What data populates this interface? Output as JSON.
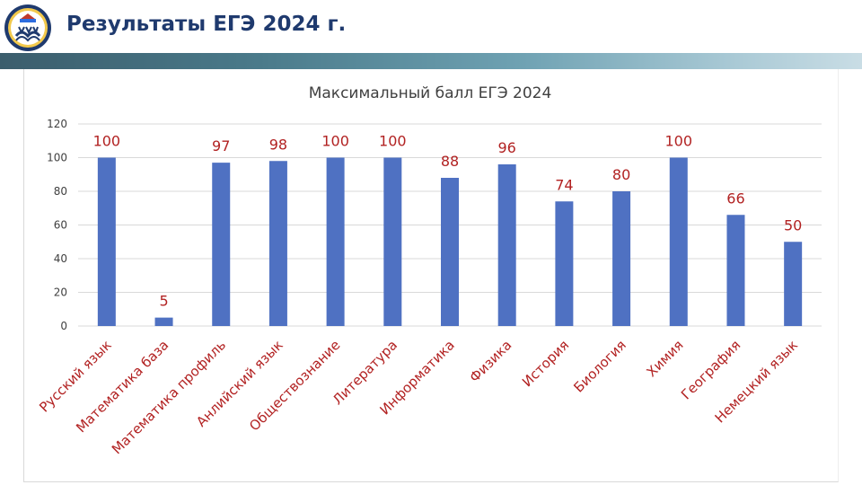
{
  "slide": {
    "title": "Результаты ЕГЭ 2024 г."
  },
  "colors": {
    "bar": "#4f71c2",
    "title": "#1f3a6e",
    "labels": "#b22222",
    "grid": "#d9d9d9"
  },
  "chart_data": {
    "type": "bar",
    "title": "Максимальный балл ЕГЭ 2024",
    "xlabel": "",
    "ylabel": "",
    "ylim": [
      0,
      120
    ],
    "yticks": [
      0,
      20,
      40,
      60,
      80,
      100,
      120
    ],
    "grid": true,
    "legend": "none",
    "categories": [
      "Русский язык",
      "Математика база",
      "Математика профиль",
      "Анлийский язык",
      "Обществознание",
      "Литература",
      "Информатика",
      "Физика",
      "История",
      "Биология",
      "Химия",
      "География",
      "Немецкий язык"
    ],
    "values": [
      100,
      5,
      97,
      98,
      100,
      100,
      88,
      96,
      74,
      80,
      100,
      66,
      50
    ]
  }
}
